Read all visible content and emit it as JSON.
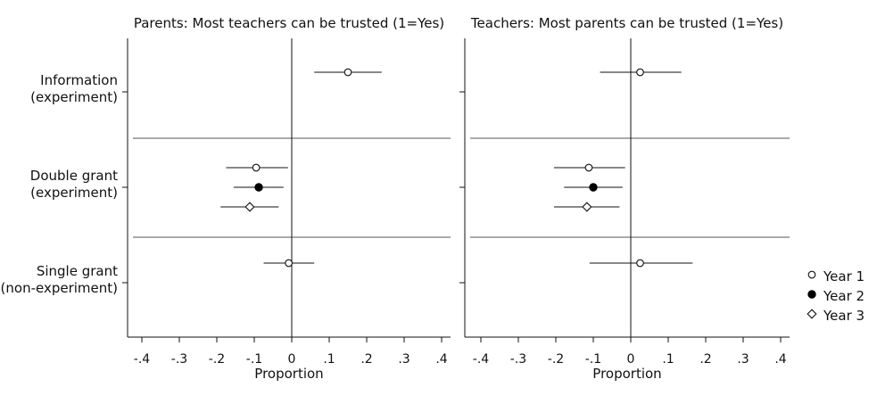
{
  "chart_data": {
    "type": "scatter",
    "subtype": "coefficient-plot-with-confidence-intervals",
    "xlabel": "Proportion",
    "xlim": [
      -0.42,
      0.42
    ],
    "ticks": [
      -0.4,
      -0.3,
      -0.2,
      -0.1,
      0,
      0.1,
      0.2,
      0.3,
      0.4
    ],
    "tick_labels": [
      "-.4",
      "-.3",
      "-.2",
      "-.1",
      "0",
      ".1",
      ".2",
      ".3",
      ".4"
    ],
    "categories": [
      {
        "key": "info",
        "lines": [
          "Information",
          "(experiment)"
        ]
      },
      {
        "key": "double",
        "lines": [
          "Double grant",
          "(experiment)"
        ]
      },
      {
        "key": "single",
        "lines": [
          "Single grant",
          "(non-experiment)"
        ]
      }
    ],
    "legend": {
      "position": "right",
      "items": [
        {
          "label": "Year 1",
          "marker": "circle-open"
        },
        {
          "label": "Year 2",
          "marker": "circle-filled"
        },
        {
          "label": "Year 3",
          "marker": "diamond-open"
        }
      ]
    },
    "panels": [
      {
        "title": "Parents: Most teachers can be trusted (1=Yes)",
        "points": [
          {
            "category": "info",
            "year": 1,
            "estimate": 0.15,
            "ci_low": 0.06,
            "ci_high": 0.24
          },
          {
            "category": "double",
            "year": 1,
            "estimate": -0.095,
            "ci_low": -0.175,
            "ci_high": -0.01
          },
          {
            "category": "double",
            "year": 2,
            "estimate": -0.088,
            "ci_low": -0.155,
            "ci_high": -0.022
          },
          {
            "category": "double",
            "year": 3,
            "estimate": -0.112,
            "ci_low": -0.19,
            "ci_high": -0.035
          },
          {
            "category": "single",
            "year": 1,
            "estimate": -0.008,
            "ci_low": -0.075,
            "ci_high": 0.06
          }
        ]
      },
      {
        "title": "Teachers: Most parents can be trusted (1=Yes)",
        "points": [
          {
            "category": "info",
            "year": 1,
            "estimate": 0.025,
            "ci_low": -0.082,
            "ci_high": 0.135
          },
          {
            "category": "double",
            "year": 1,
            "estimate": -0.112,
            "ci_low": -0.205,
            "ci_high": -0.015
          },
          {
            "category": "double",
            "year": 2,
            "estimate": -0.1,
            "ci_low": -0.178,
            "ci_high": -0.022
          },
          {
            "category": "double",
            "year": 3,
            "estimate": -0.117,
            "ci_low": -0.205,
            "ci_high": -0.03
          },
          {
            "category": "single",
            "year": 1,
            "estimate": 0.025,
            "ci_low": -0.11,
            "ci_high": 0.165
          }
        ]
      }
    ]
  }
}
